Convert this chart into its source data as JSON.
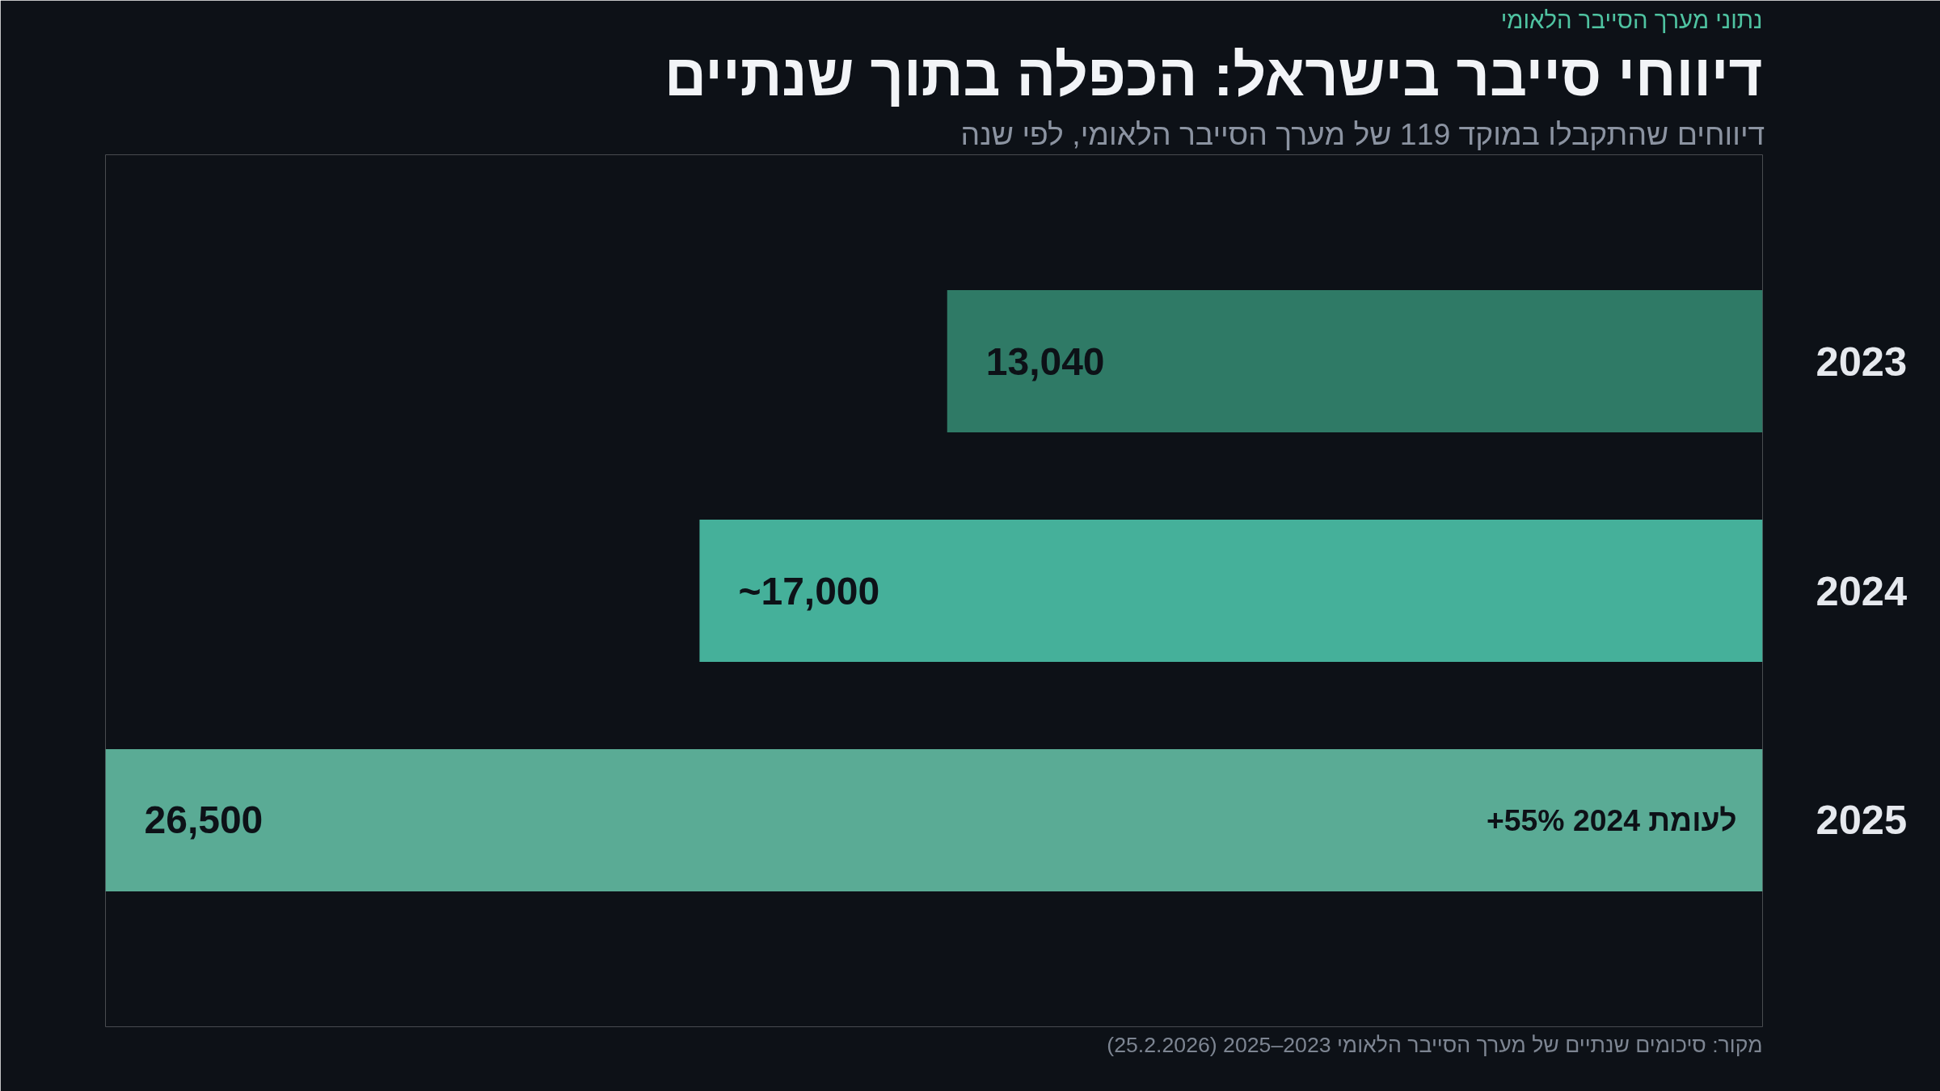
{
  "chart_data": {
    "type": "bar",
    "orientation": "horizontal",
    "title": "דיווחי סייבר בישראל: הכפלה בתוך שנתיים",
    "subtitle": "דיווחים שהתקבלו במוקד 119 של מערך הסייבר הלאומי, לפי שנה",
    "categories": [
      "2023",
      "2024",
      "2025"
    ],
    "values": [
      13040,
      17000,
      26500
    ],
    "value_labels": [
      "13,040",
      "~17,000",
      "26,500"
    ],
    "colors": [
      "#2f7a66",
      "#45b09a",
      "#5aab95"
    ],
    "xlim": [
      26500,
      0
    ],
    "tick_labels": "y",
    "grid": false,
    "annotations": [
      "נתוני מערך הסייבר הלאומי",
      {
        "text": "+55% לעומת 2024",
        "x": 0,
        "y": "2025"
      },
      "מקור: סיכומים שנתיים של מערך הסייבר הלאומי 2023–2025 (25.2.2026)"
    ]
  }
}
